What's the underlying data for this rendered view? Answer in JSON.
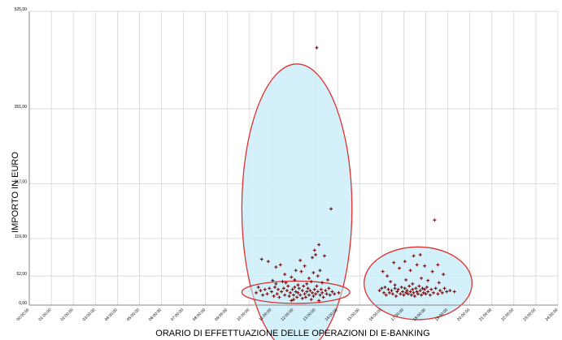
{
  "chart_data": {
    "type": "scatter",
    "title": "",
    "xlabel": "ORARIO DI EFFETTUAZIONE DELLE OPERAZIONI DI E-BANKING",
    "ylabel": "IMPORTO IN EURO",
    "xlim": [
      0,
      24
    ],
    "ylim": [
      0,
      525
    ],
    "x_tick_labels": [
      "00:00:00",
      "01:00:00",
      "02:00:00",
      "03:00:00",
      "04:00:00",
      "05:00:00",
      "06:00:00",
      "07:00:00",
      "08:00:00",
      "09:00:00",
      "10:00:00",
      "11:00:00",
      "12:00:00",
      "13:00:00",
      "14:00:00",
      "15:00:00",
      "16:00:00",
      "17:00:00",
      "18:00:00",
      "19:00:00",
      "20:00:00",
      "21:00:00",
      "22:00:00",
      "23:00:00",
      "24:00:00"
    ],
    "y_ticks": [
      {
        "value": 0,
        "label": "0,00"
      },
      {
        "value": 52,
        "label": "52,00"
      },
      {
        "value": 119,
        "label": "119,00"
      },
      {
        "value": 217,
        "label": "217,00"
      },
      {
        "value": 351,
        "label": "351,00"
      },
      {
        "value": 525,
        "label": "525,00"
      }
    ],
    "grid": true,
    "colors": {
      "marker": "#7a0a0a",
      "ellipse_stroke": "#e03030",
      "ellipse_fill": "#cdeefa",
      "grid": "#cfcfcf"
    },
    "highlight_regions": [
      {
        "x_center": 12.15,
        "y_center": 173,
        "x_halfwidth": 2.5,
        "y_halfwidth": 258
      },
      {
        "x_center": 12.1,
        "y_center": 23,
        "x_halfwidth": 2.45,
        "y_halfwidth": 20
      },
      {
        "x_center": 17.65,
        "y_center": 39,
        "x_halfwidth": 2.45,
        "y_halfwidth": 65
      }
    ],
    "points": [
      [
        13.05,
        460
      ],
      [
        13.7,
        172
      ],
      [
        18.4,
        152
      ],
      [
        13.15,
        108
      ],
      [
        12.95,
        98
      ],
      [
        13.0,
        90
      ],
      [
        12.85,
        85
      ],
      [
        13.4,
        88
      ],
      [
        12.3,
        80
      ],
      [
        12.5,
        70
      ],
      [
        11.4,
        72
      ],
      [
        11.2,
        68
      ],
      [
        12.1,
        62
      ],
      [
        12.35,
        60
      ],
      [
        13.2,
        62
      ],
      [
        12.9,
        58
      ],
      [
        13.1,
        52
      ],
      [
        11.6,
        55
      ],
      [
        11.9,
        50
      ],
      [
        12.7,
        48
      ],
      [
        13.55,
        45
      ],
      [
        11.05,
        44
      ],
      [
        11.5,
        42
      ],
      [
        12.05,
        45
      ],
      [
        12.8,
        42
      ],
      [
        10.55,
        82
      ],
      [
        10.85,
        78
      ],
      [
        10.4,
        32
      ],
      [
        10.3,
        22
      ],
      [
        10.5,
        26
      ],
      [
        10.6,
        18
      ],
      [
        10.7,
        28
      ],
      [
        10.8,
        20
      ],
      [
        10.9,
        30
      ],
      [
        11.0,
        24
      ],
      [
        11.1,
        16
      ],
      [
        11.15,
        32
      ],
      [
        11.25,
        20
      ],
      [
        11.3,
        28
      ],
      [
        11.35,
        14
      ],
      [
        11.45,
        24
      ],
      [
        11.55,
        30
      ],
      [
        11.6,
        18
      ],
      [
        11.7,
        26
      ],
      [
        11.75,
        34
      ],
      [
        11.8,
        16
      ],
      [
        11.85,
        22
      ],
      [
        11.95,
        28
      ],
      [
        12.0,
        18
      ],
      [
        12.05,
        32
      ],
      [
        12.1,
        24
      ],
      [
        12.15,
        14
      ],
      [
        12.2,
        22
      ],
      [
        12.25,
        30
      ],
      [
        12.3,
        18
      ],
      [
        12.4,
        26
      ],
      [
        12.45,
        34
      ],
      [
        12.5,
        20
      ],
      [
        12.55,
        14
      ],
      [
        12.6,
        24
      ],
      [
        12.65,
        30
      ],
      [
        12.7,
        18
      ],
      [
        12.75,
        26
      ],
      [
        12.85,
        22
      ],
      [
        12.9,
        16
      ],
      [
        12.95,
        28
      ],
      [
        13.0,
        20
      ],
      [
        13.05,
        34
      ],
      [
        13.1,
        24
      ],
      [
        13.2,
        18
      ],
      [
        13.25,
        28
      ],
      [
        13.3,
        22
      ],
      [
        13.35,
        14
      ],
      [
        13.45,
        26
      ],
      [
        13.5,
        20
      ],
      [
        13.6,
        30
      ],
      [
        13.65,
        18
      ],
      [
        13.75,
        24
      ],
      [
        13.85,
        20
      ],
      [
        14.05,
        22
      ],
      [
        11.2,
        38
      ],
      [
        11.65,
        40
      ],
      [
        12.2,
        36
      ],
      [
        12.6,
        38
      ],
      [
        13.3,
        40
      ],
      [
        12.0,
        10
      ],
      [
        12.4,
        12
      ],
      [
        11.9,
        8
      ],
      [
        12.8,
        10
      ],
      [
        13.15,
        8
      ],
      [
        16.05,
        60
      ],
      [
        16.25,
        52
      ],
      [
        16.55,
        76
      ],
      [
        16.8,
        66
      ],
      [
        17.05,
        78
      ],
      [
        17.45,
        88
      ],
      [
        17.75,
        90
      ],
      [
        17.6,
        72
      ],
      [
        17.3,
        62
      ],
      [
        17.95,
        70
      ],
      [
        18.3,
        60
      ],
      [
        18.55,
        72
      ],
      [
        18.8,
        55
      ],
      [
        16.4,
        42
      ],
      [
        17.1,
        45
      ],
      [
        17.8,
        48
      ],
      [
        18.1,
        44
      ],
      [
        18.6,
        40
      ],
      [
        16.6,
        36
      ],
      [
        17.4,
        38
      ],
      [
        15.9,
        26
      ],
      [
        16.0,
        30
      ],
      [
        16.1,
        22
      ],
      [
        16.15,
        32
      ],
      [
        16.2,
        18
      ],
      [
        16.3,
        28
      ],
      [
        16.35,
        22
      ],
      [
        16.45,
        26
      ],
      [
        16.5,
        20
      ],
      [
        16.6,
        30
      ],
      [
        16.65,
        16
      ],
      [
        16.7,
        24
      ],
      [
        16.75,
        28
      ],
      [
        16.85,
        20
      ],
      [
        16.9,
        32
      ],
      [
        16.95,
        24
      ],
      [
        17.0,
        18
      ],
      [
        17.05,
        30
      ],
      [
        17.1,
        22
      ],
      [
        17.15,
        26
      ],
      [
        17.2,
        20
      ],
      [
        17.25,
        34
      ],
      [
        17.3,
        24
      ],
      [
        17.35,
        18
      ],
      [
        17.4,
        28
      ],
      [
        17.45,
        22
      ],
      [
        17.5,
        16
      ],
      [
        17.55,
        30
      ],
      [
        17.6,
        24
      ],
      [
        17.65,
        20
      ],
      [
        17.7,
        34
      ],
      [
        17.75,
        26
      ],
      [
        17.8,
        18
      ],
      [
        17.85,
        30
      ],
      [
        17.9,
        22
      ],
      [
        17.95,
        28
      ],
      [
        18.0,
        20
      ],
      [
        18.05,
        32
      ],
      [
        18.1,
        24
      ],
      [
        18.2,
        18
      ],
      [
        18.25,
        28
      ],
      [
        18.35,
        22
      ],
      [
        18.45,
        30
      ],
      [
        18.55,
        20
      ],
      [
        18.65,
        26
      ],
      [
        18.75,
        22
      ],
      [
        18.85,
        30
      ],
      [
        18.95,
        24
      ],
      [
        19.1,
        26
      ],
      [
        19.3,
        24
      ]
    ]
  }
}
